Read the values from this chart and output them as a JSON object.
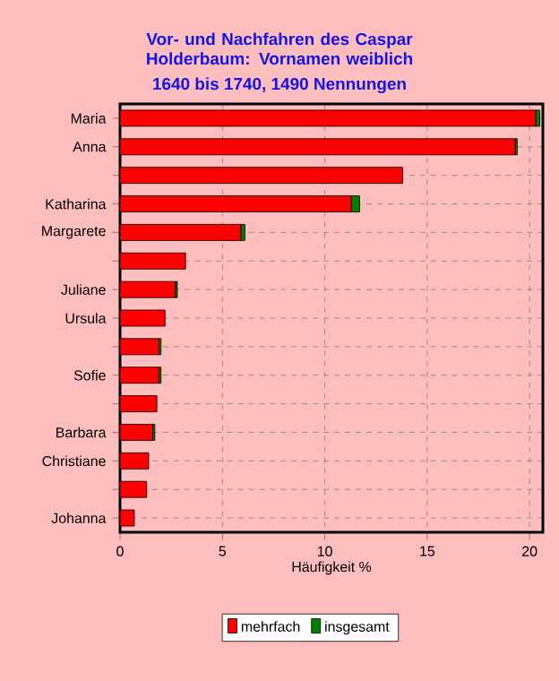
{
  "chart_data": {
    "type": "bar",
    "orientation": "horizontal",
    "stacked": true,
    "title": "Vor- und Nachfahren des Caspar Holderbaum: Vornamen weiblich",
    "subtitle": "1640 bis 1740, 1490 Nennungen",
    "xlabel": "Häufigkeit %",
    "categories": [
      "Maria",
      "Anna",
      null,
      "Katharina",
      "Margarete",
      null,
      "Juliane",
      "Ursula",
      null,
      "Sofie",
      null,
      "Barbara",
      "Christiane",
      null,
      "Johanna"
    ],
    "series": [
      {
        "name": "mehrfach",
        "color": "#ff0000",
        "values": [
          20.3,
          19.3,
          13.8,
          11.3,
          5.9,
          3.2,
          2.7,
          2.2,
          1.9,
          1.9,
          1.8,
          1.6,
          1.4,
          1.3,
          0.7
        ]
      },
      {
        "name": "insgesamt",
        "color": "#008000",
        "values": [
          0.2,
          0.1,
          0,
          0.4,
          0.2,
          0,
          0.1,
          0,
          0.1,
          0.1,
          0,
          0.1,
          0,
          0,
          0
        ]
      }
    ],
    "xlim": [
      0,
      20.65
    ],
    "xticks": [
      0,
      5,
      10,
      15,
      20
    ],
    "grid": true,
    "legend": "bottom"
  }
}
